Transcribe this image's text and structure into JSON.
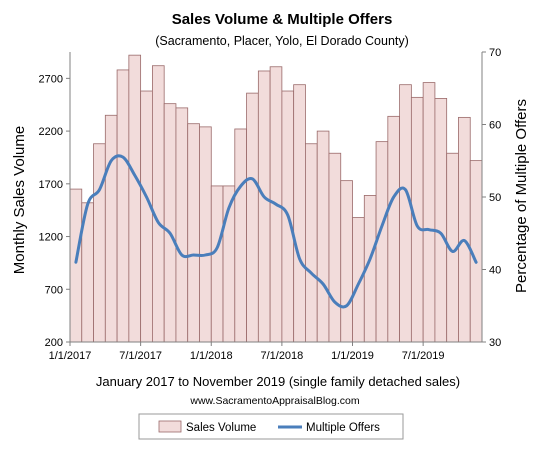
{
  "chart_data": {
    "type": "bar",
    "title": "Sales Volume & Multiple Offers",
    "subtitle": "(Sacramento, Placer, Yolo, El Dorado County)",
    "xlabel": "January 2017 to November 2019 (single family detached sales)",
    "ylabel": "Monthly Sales Volume",
    "y2label": "Percentage of Multiple Offers",
    "source": "www.SacramentoAppraisalBlog.com",
    "ylim": [
      200,
      2950
    ],
    "y2lim": [
      30,
      70
    ],
    "yticks": [
      "200",
      "700",
      "1200",
      "1700",
      "2200",
      "2700"
    ],
    "y2ticks": [
      "30",
      "40",
      "50",
      "60",
      "70"
    ],
    "xticks": [
      {
        "index": 0,
        "label": "1/1/2017"
      },
      {
        "index": 6,
        "label": "7/1/2017"
      },
      {
        "index": 12,
        "label": "1/1/2018"
      },
      {
        "index": 18,
        "label": "7/1/2018"
      },
      {
        "index": 24,
        "label": "1/1/2019"
      },
      {
        "index": 30,
        "label": "7/1/2019"
      }
    ],
    "categories": [
      "2017-01",
      "2017-02",
      "2017-03",
      "2017-04",
      "2017-05",
      "2017-06",
      "2017-07",
      "2017-08",
      "2017-09",
      "2017-10",
      "2017-11",
      "2017-12",
      "2018-01",
      "2018-02",
      "2018-03",
      "2018-04",
      "2018-05",
      "2018-06",
      "2018-07",
      "2018-08",
      "2018-09",
      "2018-10",
      "2018-11",
      "2018-12",
      "2019-01",
      "2019-02",
      "2019-03",
      "2019-04",
      "2019-05",
      "2019-06",
      "2019-07",
      "2019-08",
      "2019-09",
      "2019-10",
      "2019-11"
    ],
    "series": [
      {
        "name": "Sales Volume",
        "type": "bar",
        "axis": "left",
        "color": "#f2dcdb",
        "stroke": "#9a6a6a",
        "values": [
          1650,
          1520,
          2080,
          2350,
          2780,
          2920,
          2580,
          2820,
          2460,
          2420,
          2270,
          2240,
          1680,
          1680,
          2220,
          2560,
          2770,
          2810,
          2580,
          2640,
          2080,
          2200,
          1990,
          1730,
          1380,
          1590,
          2100,
          2340,
          2640,
          2520,
          2660,
          2510,
          1990,
          2330,
          1920
        ]
      },
      {
        "name": "Multiple Offers",
        "type": "line",
        "axis": "right",
        "color": "#4a7ebb",
        "values": [
          41,
          49,
          51,
          55,
          55.5,
          53,
          50,
          46.5,
          45,
          42,
          42,
          42,
          43,
          48.5,
          51.5,
          52.5,
          50,
          49,
          47.5,
          41.5,
          39.5,
          38,
          35.5,
          35,
          38,
          41.5,
          46,
          50,
          51,
          46,
          45.5,
          45,
          42.5,
          44,
          41
        ]
      }
    ],
    "legend": {
      "position": "bottom",
      "items": [
        "Sales Volume",
        "Multiple Offers"
      ]
    },
    "grid": false
  }
}
